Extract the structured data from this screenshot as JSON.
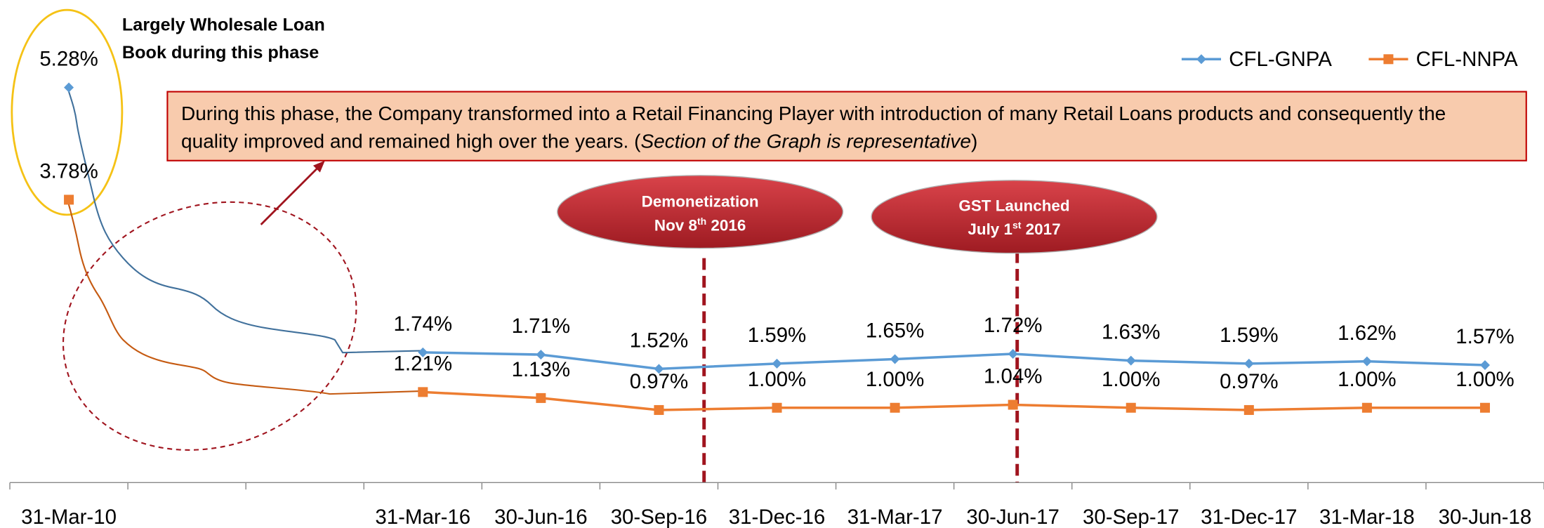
{
  "chart_data": {
    "type": "line",
    "categories": [
      "31-Mar-10",
      null,
      null,
      "31-Mar-16",
      "30-Jun-16",
      "30-Sep-16",
      "31-Dec-16",
      "31-Mar-17",
      "30-Jun-17",
      "30-Sep-17",
      "31-Dec-17",
      "31-Mar-18",
      "30-Jun-18"
    ],
    "series": [
      {
        "name": "CFL-GNPA",
        "color": "#5b9bd5",
        "values": [
          5.28,
          null,
          null,
          1.74,
          1.71,
          1.52,
          1.59,
          1.65,
          1.72,
          1.63,
          1.59,
          1.62,
          1.57
        ],
        "value_labels": [
          "5.28%",
          null,
          null,
          "1.74%",
          "1.71%",
          "1.52%",
          "1.59%",
          "1.65%",
          "1.72%",
          "1.63%",
          "1.59%",
          "1.62%",
          "1.57%"
        ]
      },
      {
        "name": "CFL-NNPA",
        "color": "#ed7d31",
        "values": [
          3.78,
          null,
          null,
          1.21,
          1.13,
          0.97,
          1.0,
          1.0,
          1.04,
          1.0,
          0.97,
          1.0,
          1.0
        ],
        "value_labels": [
          "3.78%",
          null,
          null,
          "1.21%",
          "1.13%",
          "0.97%",
          "1.00%",
          "1.00%",
          "1.04%",
          "1.00%",
          "0.97%",
          "1.00%",
          "1.00%"
        ]
      }
    ],
    "ylim": [
      0,
      6
    ],
    "legend": "top-right",
    "annotations": {
      "wholesale": [
        "Largely Wholesale Loan",
        "Book during this phase"
      ],
      "retail": [
        "During this phase, the Company transformed into a Retail Financing Player with introduction of many Retail Loans products and consequently the",
        "quality improved and remained high over the years. (",
        "Section of the Graph is representative",
        ")"
      ],
      "demonetization": [
        "Demonetization",
        "Nov 8",
        "th",
        " 2016"
      ],
      "gst": [
        "GST Launched",
        "July 1",
        "st",
        " 2017"
      ]
    }
  }
}
